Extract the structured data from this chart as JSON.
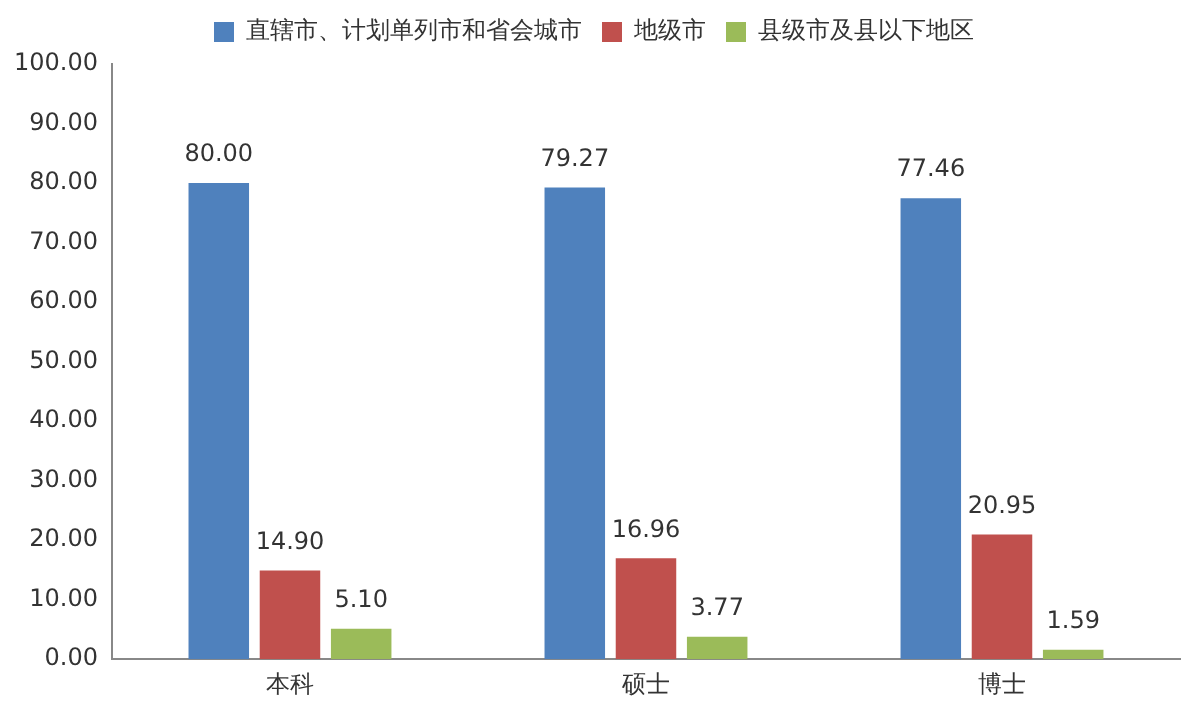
{
  "chart_data": {
    "type": "bar",
    "categories": [
      "本科",
      "硕士",
      "博士"
    ],
    "series": [
      {
        "name": "直辖市、计划单列市和省会城市",
        "color": "#4f81bd",
        "values": [
          80.0,
          79.27,
          77.46
        ],
        "value_labels": [
          "80.00",
          "79.27",
          "77.46"
        ]
      },
      {
        "name": "地级市",
        "color": "#c0504d",
        "values": [
          14.9,
          16.96,
          20.95
        ],
        "value_labels": [
          "14.90",
          "16.96",
          "20.95"
        ]
      },
      {
        "name": "县级市及县以下地区",
        "color": "#9bbb59",
        "values": [
          5.1,
          3.77,
          1.59
        ],
        "value_labels": [
          "5.10",
          "3.77",
          "1.59"
        ]
      }
    ],
    "ylim": [
      0,
      100
    ],
    "yticks": [
      {
        "value": 0,
        "label": "0.00"
      },
      {
        "value": 10,
        "label": "10.00"
      },
      {
        "value": 20,
        "label": "20.00"
      },
      {
        "value": 30,
        "label": "30.00"
      },
      {
        "value": 40,
        "label": "40.00"
      },
      {
        "value": 50,
        "label": "50.00"
      },
      {
        "value": 60,
        "label": "60.00"
      },
      {
        "value": 70,
        "label": "70.00"
      },
      {
        "value": 80,
        "label": "80.00"
      },
      {
        "value": 90,
        "label": "90.00"
      },
      {
        "value": 100,
        "label": "100.00"
      }
    ],
    "grid": false,
    "legend": "top"
  }
}
